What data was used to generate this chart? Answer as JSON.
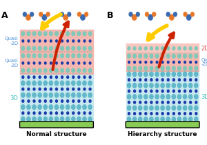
{
  "bg_color": "#ffffff",
  "panel_A_label": "A",
  "panel_B_label": "B",
  "title_A": "Normal structure",
  "title_B": "Hierarchy structure",
  "label_quasi2D_color": "#4a90d9",
  "label_2D_color": "#e05050",
  "label_3D_color": "#40bfbf",
  "green_bar_color": "#88cc55",
  "pink_color": "#f5b8b0",
  "teal_color": "#80c8b8",
  "blue_dot_color": "#1a3aaa",
  "teal_dot_color": "#60b8c8",
  "arrow_yellow": "#ffcc00",
  "arrow_orange": "#ff8800",
  "arrow_red": "#cc2200",
  "mol_orange": "#e87828",
  "mol_blue": "#3a6ab0"
}
